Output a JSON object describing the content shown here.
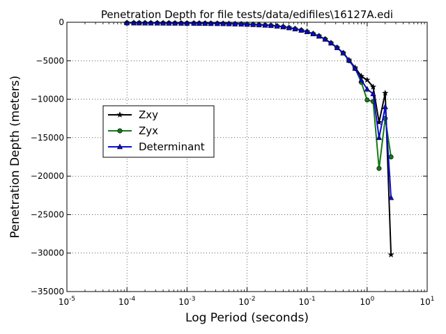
{
  "chart_data": {
    "type": "line",
    "title": "Penetration Depth for file tests/data/edifiles\\16127A.edi",
    "xlabel": "Log Period (seconds)",
    "ylabel": "Penetration Depth (meters)",
    "x_scale": "log",
    "xlim": [
      1e-05,
      10
    ],
    "ylim": [
      -35000,
      0
    ],
    "grid": true,
    "legend_placement": "center-left",
    "x_ticks": [
      {
        "base": "10",
        "exp": "-5"
      },
      {
        "base": "10",
        "exp": "-4"
      },
      {
        "base": "10",
        "exp": "-3"
      },
      {
        "base": "10",
        "exp": "-2"
      },
      {
        "base": "10",
        "exp": "-1"
      },
      {
        "base": "10",
        "exp": "0"
      },
      {
        "base": "10",
        "exp": "1"
      }
    ],
    "y_ticks": [
      "0",
      "−5000",
      "−10000",
      "−15000",
      "−20000",
      "−25000",
      "−30000",
      "−35000"
    ],
    "x": [
      0.0001,
      0.00013,
      0.00016,
      0.0002,
      0.00025,
      0.00032,
      0.0004,
      0.0005,
      0.00063,
      0.0008,
      0.001,
      0.0013,
      0.0016,
      0.002,
      0.0025,
      0.0032,
      0.004,
      0.005,
      0.0063,
      0.008,
      0.01,
      0.0126,
      0.0158,
      0.02,
      0.025,
      0.0316,
      0.04,
      0.05,
      0.063,
      0.08,
      0.1,
      0.126,
      0.158,
      0.2,
      0.25,
      0.316,
      0.4,
      0.5,
      0.63,
      0.8,
      1.0,
      1.26,
      1.58,
      2.0,
      2.5
    ],
    "series": [
      {
        "name": "Zxy",
        "color": "#000000",
        "marker": "star",
        "values": [
          -80,
          -85,
          -90,
          -95,
          -100,
          -105,
          -110,
          -115,
          -120,
          -125,
          -130,
          -135,
          -140,
          -150,
          -160,
          -170,
          -180,
          -200,
          -220,
          -240,
          -270,
          -300,
          -340,
          -380,
          -430,
          -500,
          -600,
          -720,
          -860,
          -1040,
          -1230,
          -1500,
          -1800,
          -2200,
          -2700,
          -3300,
          -4000,
          -4900,
          -5900,
          -7000,
          -7500,
          -8400,
          -13000,
          -9200,
          -30200
        ]
      },
      {
        "name": "Zyx",
        "color": "#137a13",
        "marker": "circle",
        "values": [
          -80,
          -85,
          -90,
          -95,
          -100,
          -105,
          -110,
          -115,
          -120,
          -125,
          -130,
          -135,
          -140,
          -150,
          -160,
          -170,
          -180,
          -200,
          -220,
          -240,
          -270,
          -300,
          -340,
          -380,
          -430,
          -500,
          -600,
          -720,
          -860,
          -1040,
          -1230,
          -1500,
          -1800,
          -2200,
          -2700,
          -3300,
          -4000,
          -5000,
          -6000,
          -7800,
          -10100,
          -10300,
          -19000,
          -12500,
          -17500
        ]
      },
      {
        "name": "Determinant",
        "color": "#0a0ad6",
        "marker": "triangle",
        "values": [
          -80,
          -85,
          -90,
          -95,
          -100,
          -105,
          -110,
          -115,
          -120,
          -125,
          -130,
          -135,
          -140,
          -150,
          -160,
          -170,
          -180,
          -200,
          -220,
          -240,
          -270,
          -300,
          -340,
          -380,
          -430,
          -500,
          -600,
          -720,
          -860,
          -1040,
          -1230,
          -1500,
          -1800,
          -2200,
          -2700,
          -3300,
          -4000,
          -4950,
          -6000,
          -7500,
          -8700,
          -9300,
          -15000,
          -11000,
          -22800
        ]
      }
    ]
  }
}
